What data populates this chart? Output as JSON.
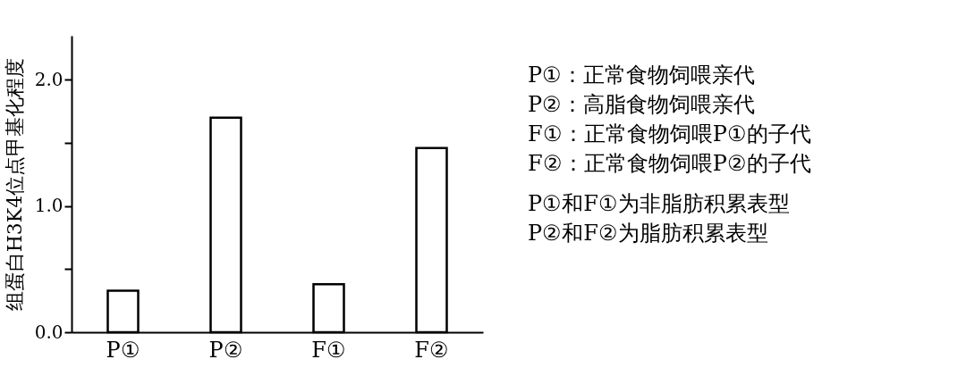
{
  "chart_data": {
    "type": "bar",
    "ylabel": "组蛋白H3K4位点甲基化程度",
    "categories": [
      "P①",
      "P②",
      "F①",
      "F②"
    ],
    "values": [
      0.33,
      1.7,
      0.38,
      1.46
    ],
    "color": "#ffffff",
    "ylim": [
      0,
      2.35
    ],
    "yticks": [
      {
        "value": 0,
        "label": "0.0"
      },
      {
        "value": 0.5,
        "label": null
      },
      {
        "value": 1,
        "label": "1.0"
      },
      {
        "value": 1.5,
        "label": null
      },
      {
        "value": 2,
        "label": "2.0"
      }
    ],
    "grid": false,
    "annotations": [
      "P①：正常食物饲喂亲代",
      "P②：高脂食物饲喂亲代",
      "F①：正常食物饲喂P①的子代",
      "F②：正常食物饲喂P②的子代",
      "P①和F①为非脂肪积累表型",
      "P②和F②为脂肪积累表型"
    ]
  }
}
